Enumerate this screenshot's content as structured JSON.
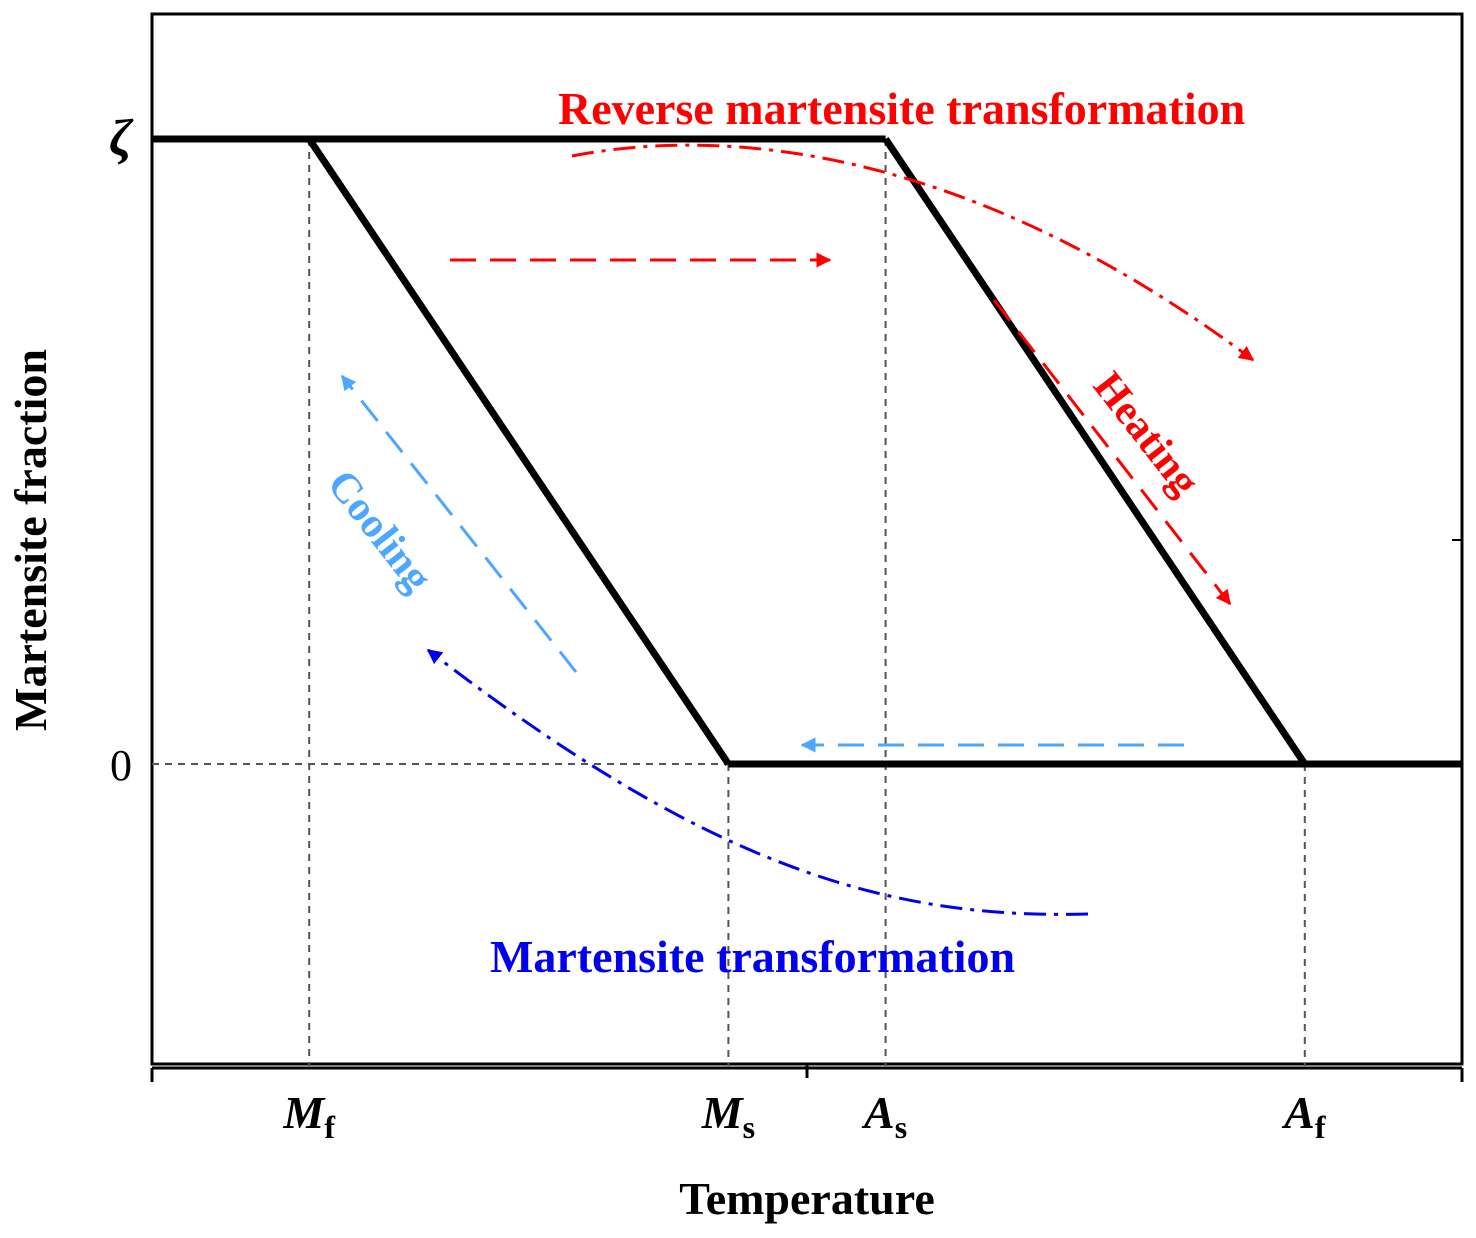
{
  "chart_data": {
    "type": "line",
    "title": "",
    "xlabel": "Temperature",
    "ylabel": "Martensite fraction",
    "y_ticks": [
      {
        "name": "zeta",
        "label": "ζ",
        "value": 1
      },
      {
        "name": "zero",
        "label": "0",
        "value": 0
      }
    ],
    "x_ticks": [
      {
        "name": "mf",
        "main": "M",
        "sub": "f",
        "value": 0.12
      },
      {
        "name": "ms",
        "main": "M",
        "sub": "s",
        "value": 0.44
      },
      {
        "name": "as",
        "main": "A",
        "sub": "s",
        "value": 0.56
      },
      {
        "name": "af",
        "main": "A",
        "sub": "f",
        "value": 0.88
      }
    ],
    "xlim": [
      0,
      1
    ],
    "ylim": [
      -0.48,
      1.2
    ],
    "series": [
      {
        "name": "cooling path",
        "points": [
          [
            0.44,
            0
          ],
          [
            0.12,
            1
          ]
        ]
      },
      {
        "name": "heating path",
        "points": [
          [
            0.56,
            1
          ],
          [
            0.88,
            0
          ]
        ]
      },
      {
        "name": "upper plateau",
        "points": [
          [
            0,
            1
          ],
          [
            0.56,
            1
          ]
        ]
      },
      {
        "name": "lower plateau",
        "points": [
          [
            0.44,
            0
          ],
          [
            1,
            0
          ]
        ]
      }
    ],
    "annotations": {
      "reverse_transformation": "Reverse martensite transformation",
      "martensite_transformation": "Martensite transformation",
      "heating": "Heating",
      "cooling": "Cooling"
    },
    "colors": {
      "red": "#ff0000",
      "light_blue": "#4da6ff",
      "dark_blue": "#0000ee",
      "line": "#000000"
    }
  }
}
